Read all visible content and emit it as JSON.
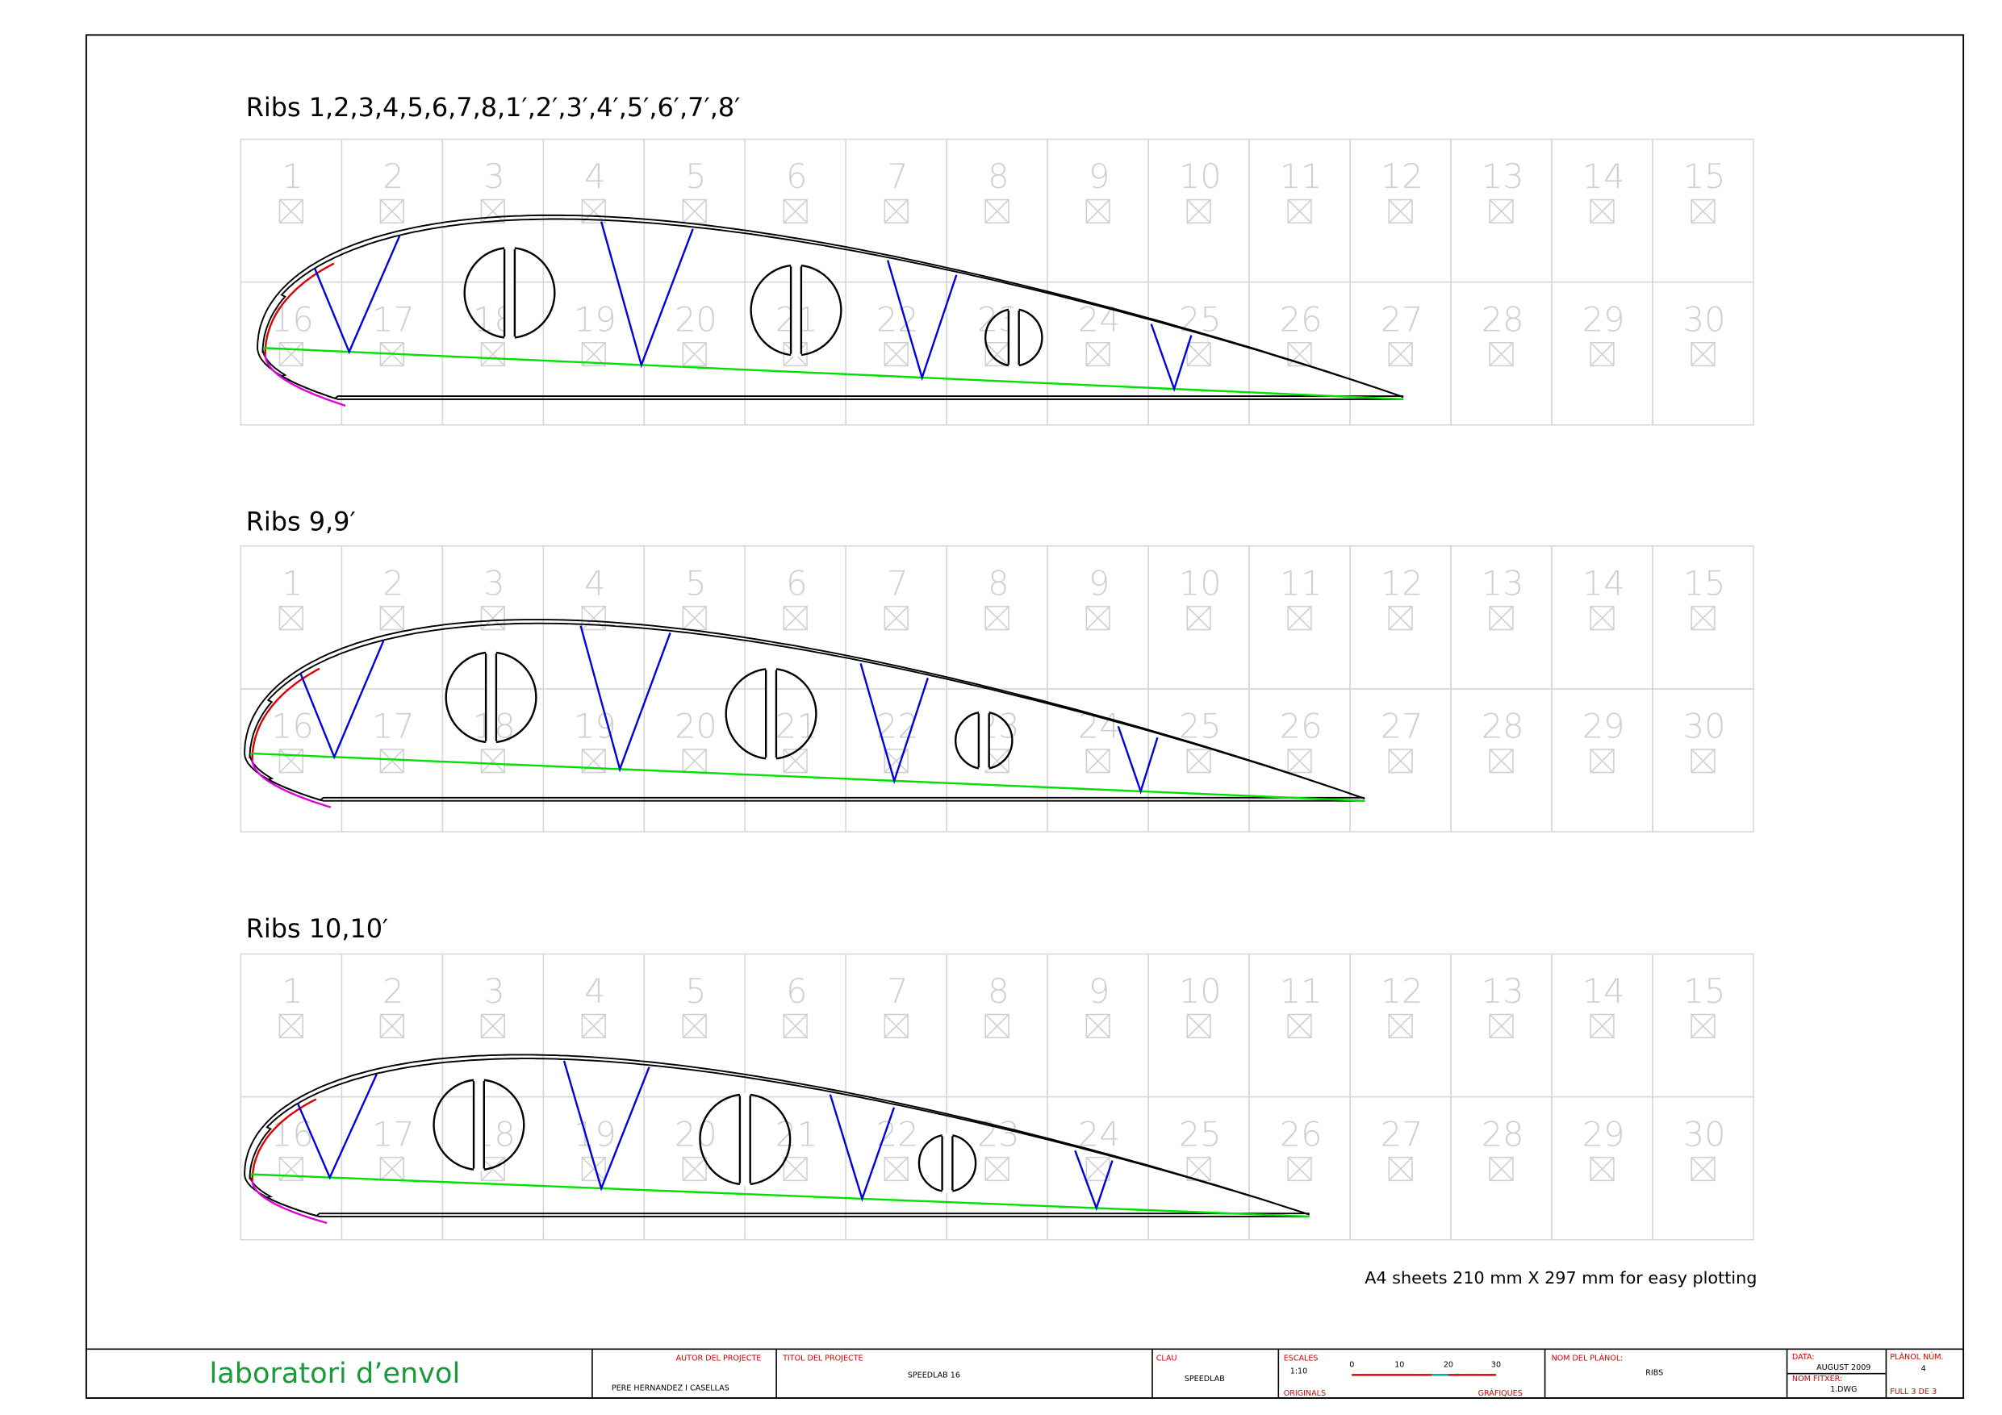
{
  "sections": [
    {
      "title": "Ribs 1,2,3,4,5,6,7,8,1′,2′,3′,4′,5′,6′,7′,8′"
    },
    {
      "title": "Ribs 9,9′"
    },
    {
      "title": "Ribs 10,10′"
    }
  ],
  "sheet_numbers": [
    "1",
    "2",
    "3",
    "4",
    "5",
    "6",
    "7",
    "8",
    "9",
    "10",
    "11",
    "12",
    "13",
    "14",
    "15",
    "16",
    "17",
    "18",
    "19",
    "20",
    "21",
    "22",
    "23",
    "24",
    "25",
    "26",
    "27",
    "28",
    "29",
    "30"
  ],
  "note": "A4 sheets 210 mm X 297 mm for easy plotting",
  "title_block": {
    "logo": "laboratori d’envol",
    "author_label": "AUTOR DEL PROJECTE",
    "author": "PERE HERNANDEZ I CASELLAS",
    "project_label": "TITOL DEL PROJECTE",
    "project": "SPEEDLAB 16",
    "key_label": "CLAU",
    "key": "SPEEDLAB",
    "scales_label": "ESCALES",
    "scale": "1:10",
    "originals": "ORIGINALS",
    "graphics": "GRÀFIQUES",
    "scale_ticks": [
      "0",
      "10",
      "20",
      "30"
    ],
    "plan_name_label": "NOM DEL PLÀNOL:",
    "plan_name": "RIBS",
    "date_label": "DATA:",
    "date": "AUGUST 2009",
    "file_label": "NOM FITXER:",
    "file": "1.DWG",
    "plan_num_label": "PLÀNOL NÚM.",
    "plan_num": "4",
    "sheet": "FULL 3 DE 3"
  }
}
